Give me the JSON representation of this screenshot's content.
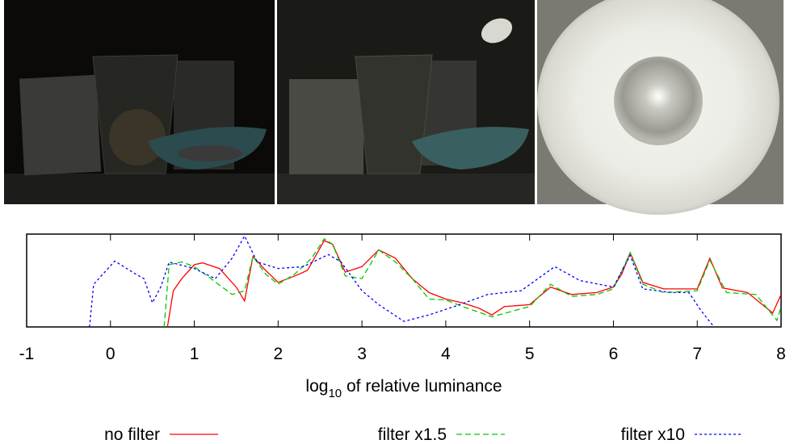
{
  "chart_data": {
    "type": "line",
    "xlabel": [
      "log",
      "10",
      " of relative luminance"
    ],
    "xlim": [
      -1,
      8
    ],
    "xticks": [
      -1,
      0,
      1,
      2,
      3,
      4,
      5,
      6,
      7,
      8
    ],
    "ylim": [
      0,
      1
    ],
    "series": [
      {
        "name": "no filter",
        "color": "#ff0000",
        "dash": "solid",
        "x": [
          0.68,
          0.75,
          0.85,
          1.0,
          1.1,
          1.3,
          1.5,
          1.6,
          1.7,
          1.85,
          2.0,
          2.2,
          2.35,
          2.55,
          2.65,
          2.8,
          3.0,
          3.2,
          3.4,
          3.6,
          3.8,
          4.0,
          4.2,
          4.4,
          4.55,
          4.7,
          5.0,
          5.25,
          5.5,
          5.8,
          6.0,
          6.1,
          6.2,
          6.35,
          6.6,
          7.0,
          7.15,
          7.3,
          7.6,
          7.9,
          8.0
        ],
        "values": [
          0,
          0.39,
          0.52,
          0.67,
          0.69,
          0.63,
          0.43,
          0.28,
          0.76,
          0.61,
          0.48,
          0.55,
          0.61,
          0.93,
          0.89,
          0.59,
          0.65,
          0.83,
          0.74,
          0.52,
          0.37,
          0.3,
          0.26,
          0.2,
          0.13,
          0.22,
          0.24,
          0.43,
          0.35,
          0.37,
          0.43,
          0.57,
          0.8,
          0.48,
          0.41,
          0.41,
          0.74,
          0.42,
          0.37,
          0.15,
          0.35
        ]
      },
      {
        "name": "filter x1.5",
        "color": "#00cc00",
        "dash": "dashed",
        "x": [
          0.64,
          0.7,
          0.85,
          1.0,
          1.2,
          1.45,
          1.6,
          1.7,
          1.85,
          2.0,
          2.2,
          2.4,
          2.55,
          2.65,
          2.8,
          3.0,
          3.2,
          3.4,
          3.6,
          3.8,
          4.0,
          4.2,
          4.55,
          4.8,
          5.0,
          5.25,
          5.5,
          5.8,
          6.0,
          6.2,
          6.35,
          6.6,
          7.0,
          7.15,
          7.35,
          7.7,
          7.95,
          8.0
        ],
        "values": [
          0,
          0.67,
          0.7,
          0.65,
          0.52,
          0.35,
          0.39,
          0.76,
          0.57,
          0.46,
          0.57,
          0.74,
          0.95,
          0.89,
          0.55,
          0.52,
          0.83,
          0.7,
          0.52,
          0.3,
          0.29,
          0.22,
          0.11,
          0.17,
          0.22,
          0.46,
          0.33,
          0.35,
          0.41,
          0.8,
          0.46,
          0.37,
          0.39,
          0.72,
          0.37,
          0.35,
          0.07,
          0.22
        ]
      },
      {
        "name": "filter x10",
        "color": "#0000ff",
        "dash": "dotted",
        "x": [
          -0.25,
          -0.2,
          0.05,
          0.3,
          0.4,
          0.5,
          0.6,
          0.7,
          1.0,
          1.25,
          1.45,
          1.6,
          1.75,
          2.0,
          2.3,
          2.6,
          2.75,
          3.0,
          3.2,
          3.5,
          3.8,
          4.1,
          4.5,
          4.9,
          5.1,
          5.3,
          5.6,
          6.0,
          6.2,
          6.35,
          6.7,
          6.9,
          7.05,
          7.2
        ],
        "values": [
          0,
          0.46,
          0.71,
          0.57,
          0.52,
          0.26,
          0.43,
          0.7,
          0.63,
          0.52,
          0.74,
          0.98,
          0.7,
          0.63,
          0.65,
          0.78,
          0.7,
          0.39,
          0.24,
          0.06,
          0.13,
          0.22,
          0.35,
          0.39,
          0.52,
          0.65,
          0.5,
          0.43,
          0.77,
          0.41,
          0.37,
          0.37,
          0.17,
          0
        ]
      }
    ]
  }
}
